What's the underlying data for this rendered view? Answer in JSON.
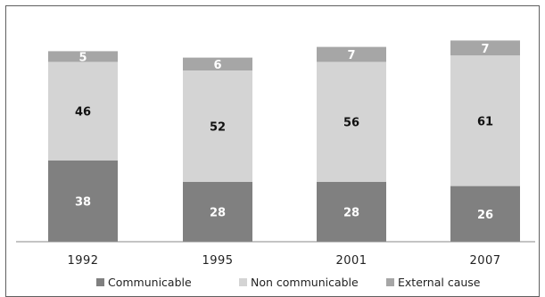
{
  "chart_data": {
    "type": "bar",
    "stacked": true,
    "categories": [
      "1992",
      "1995",
      "2001",
      "2007"
    ],
    "series": [
      {
        "name": "Communicable",
        "values": [
          38,
          28,
          28,
          26
        ],
        "color": "#808080",
        "label_color": "#ffffff"
      },
      {
        "name": "Non communicable",
        "values": [
          46,
          52,
          56,
          61
        ],
        "color": "#d4d4d4",
        "label_color": "#111111"
      },
      {
        "name": "External cause",
        "values": [
          5,
          6,
          7,
          7
        ],
        "color": "#a6a6a6",
        "label_color": "#ffffff"
      }
    ],
    "ylim": [
      0,
      96
    ],
    "grid": false,
    "legend": "bottom"
  }
}
